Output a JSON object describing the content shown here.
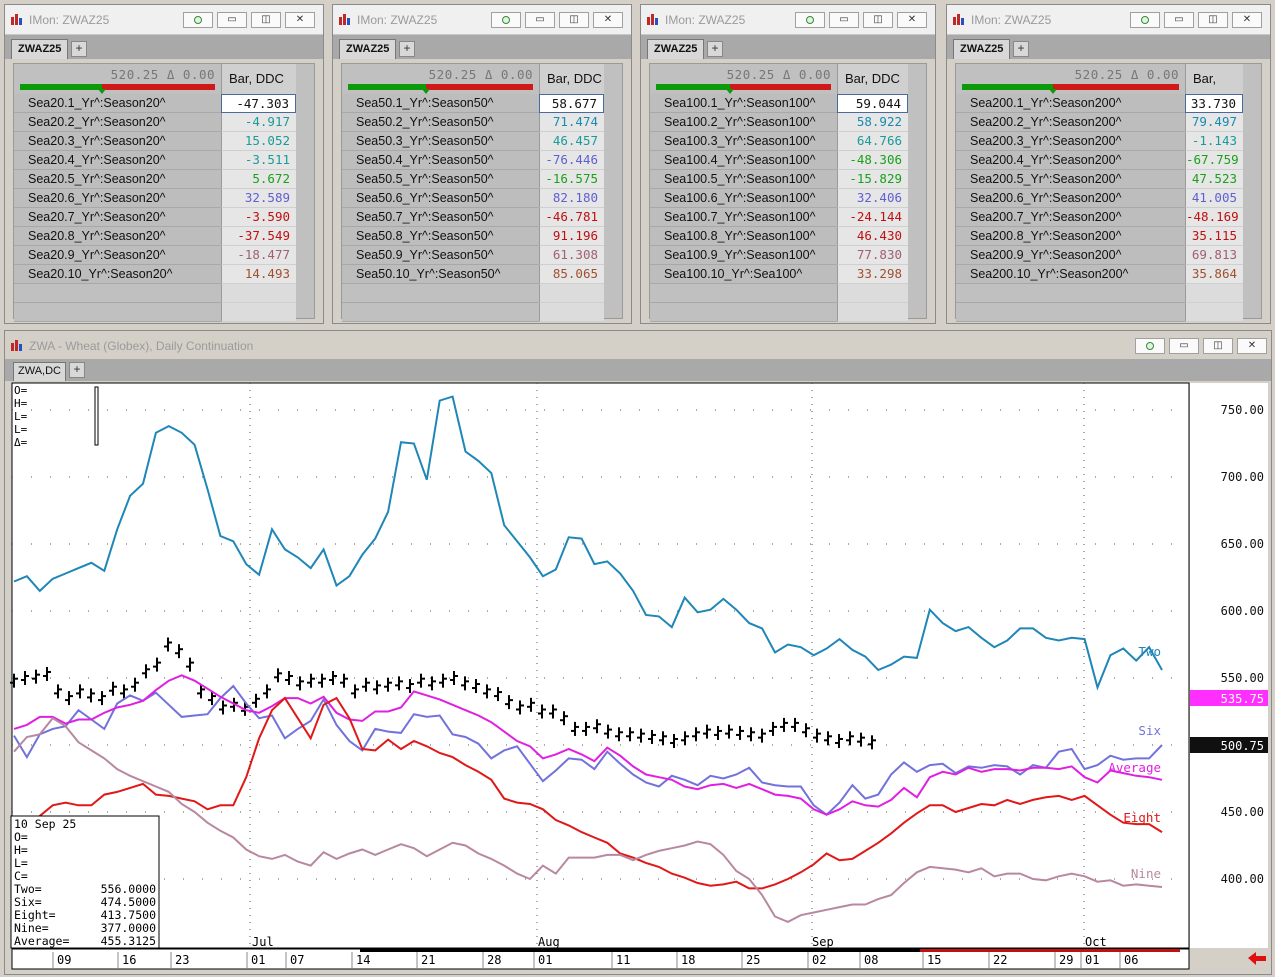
{
  "imon_windows": [
    {
      "title": "IMon: ZWAZ25",
      "tab": "ZWAZ25",
      "price_header": "520.25 Δ 0.00",
      "column_header": "Bar, DDC",
      "rows": [
        {
          "label": "Sea20.1_Yr^:Season20^",
          "value": "-47.303",
          "color": "#111111"
        },
        {
          "label": "Sea20.2_Yr^:Season20^",
          "value": "-4.917",
          "color": "#1a9a9a"
        },
        {
          "label": "Sea20.3_Yr^:Season20^",
          "value": "15.052",
          "color": "#1a9a9a"
        },
        {
          "label": "Sea20.4_Yr^:Season20^",
          "value": "-3.511",
          "color": "#1a9a9a"
        },
        {
          "label": "Sea20.5_Yr^:Season20^",
          "value": "5.672",
          "color": "#1aa01a"
        },
        {
          "label": "Sea20.6_Yr^:Season20^",
          "value": "32.589",
          "color": "#6060d0"
        },
        {
          "label": "Sea20.7_Yr^:Season20^",
          "value": "-3.590",
          "color": "#c01010"
        },
        {
          "label": "Sea20.8_Yr^:Season20^",
          "value": "-37.549",
          "color": "#c01010"
        },
        {
          "label": "Sea20.9_Yr^:Season20^",
          "value": "-18.477",
          "color": "#a06070"
        },
        {
          "label": "Sea20.10_Yr^:Season20^",
          "value": "14.493",
          "color": "#a05030"
        }
      ]
    },
    {
      "title": "IMon: ZWAZ25",
      "tab": "ZWAZ25",
      "price_header": "520.25 Δ 0.00",
      "column_header": "Bar, DDC",
      "rows": [
        {
          "label": "Sea50.1_Yr^:Season50^",
          "value": "58.677",
          "color": "#111111"
        },
        {
          "label": "Sea50.2_Yr^:Season50^",
          "value": "71.474",
          "color": "#1a8ab0"
        },
        {
          "label": "Sea50.3_Yr^:Season50^",
          "value": "46.457",
          "color": "#1a9a9a"
        },
        {
          "label": "Sea50.4_Yr^:Season50^",
          "value": "-76.446",
          "color": "#6060d0"
        },
        {
          "label": "Sea50.5_Yr^:Season50^",
          "value": "-16.575",
          "color": "#1aa01a"
        },
        {
          "label": "Sea50.6_Yr^:Season50^",
          "value": "82.180",
          "color": "#6060d0"
        },
        {
          "label": "Sea50.7_Yr^:Season50^",
          "value": "-46.781",
          "color": "#c01010"
        },
        {
          "label": "Sea50.8_Yr^:Season50^",
          "value": "91.196",
          "color": "#c01010"
        },
        {
          "label": "Sea50.9_Yr^:Season50^",
          "value": "61.308",
          "color": "#a06070"
        },
        {
          "label": "Sea50.10_Yr^:Season50^",
          "value": "85.065",
          "color": "#a05030"
        }
      ]
    },
    {
      "title": "IMon: ZWAZ25",
      "tab": "ZWAZ25",
      "price_header": "520.25 Δ 0.00",
      "column_header": "Bar, DDC",
      "rows": [
        {
          "label": "Sea100.1_Yr^:Season100^",
          "value": "59.044",
          "color": "#111111"
        },
        {
          "label": "Sea100.2_Yr^:Season100^",
          "value": "58.922",
          "color": "#1a8ab0"
        },
        {
          "label": "Sea100.3_Yr^:Season100^",
          "value": "64.766",
          "color": "#1a9a9a"
        },
        {
          "label": "Sea100.4_Yr^:Season100^",
          "value": "-48.306",
          "color": "#1aa01a"
        },
        {
          "label": "Sea100.5_Yr^:Season100^",
          "value": "-15.829",
          "color": "#1aa01a"
        },
        {
          "label": "Sea100.6_Yr^:Season100^",
          "value": "32.406",
          "color": "#6060d0"
        },
        {
          "label": "Sea100.7_Yr^:Season100^",
          "value": "-24.144",
          "color": "#c01010"
        },
        {
          "label": "Sea100.8_Yr^:Season100^",
          "value": "46.430",
          "color": "#c01010"
        },
        {
          "label": "Sea100.9_Yr^:Season100^",
          "value": "77.830",
          "color": "#a06070"
        },
        {
          "label": "Sea100.10_Yr^:Sea100^",
          "value": "33.298",
          "color": "#a05030"
        }
      ]
    },
    {
      "title": "IMon: ZWAZ25",
      "tab": "ZWAZ25",
      "price_header": "520.25 Δ 0.00",
      "column_header": "Bar, DDC",
      "rows": [
        {
          "label": "Sea200.1_Yr^:Season200^",
          "value": "33.730",
          "color": "#111111"
        },
        {
          "label": "Sea200.2_Yr^:Season200^",
          "value": "79.497",
          "color": "#1a8ab0"
        },
        {
          "label": "Sea200.3_Yr^:Season200^",
          "value": "-1.143",
          "color": "#1a9a9a"
        },
        {
          "label": "Sea200.4_Yr^:Season200^",
          "value": "-67.759",
          "color": "#1aa01a"
        },
        {
          "label": "Sea200.5_Yr^:Season200^",
          "value": "47.523",
          "color": "#1aa01a"
        },
        {
          "label": "Sea200.6_Yr^:Season200^",
          "value": "41.005",
          "color": "#6060d0"
        },
        {
          "label": "Sea200.7_Yr^:Season200^",
          "value": "-48.169",
          "color": "#c01010"
        },
        {
          "label": "Sea200.8_Yr^:Season200^",
          "value": "35.115",
          "color": "#c01010"
        },
        {
          "label": "Sea200.9_Yr^:Season200^",
          "value": "69.813",
          "color": "#a06070"
        },
        {
          "label": "Sea200.10_Yr^:Season200^",
          "value": "35.864",
          "color": "#a05030"
        }
      ]
    }
  ],
  "chart_window": {
    "title": "ZWA - Wheat (Globex), Daily Continuation",
    "tab": "ZWA,DC",
    "ohlc_header": [
      "O=",
      "H=",
      "L=",
      "L=",
      "Δ="
    ],
    "data_box": [
      {
        "label": "10 Sep 25",
        "value": ""
      },
      {
        "label": "O=",
        "value": ""
      },
      {
        "label": "H=",
        "value": ""
      },
      {
        "label": "L=",
        "value": ""
      },
      {
        "label": "C=",
        "value": ""
      },
      {
        "label": "Two=",
        "value": "556.0000"
      },
      {
        "label": "Six=",
        "value": "474.5000"
      },
      {
        "label": "Eight=",
        "value": "413.7500"
      },
      {
        "label": "Nine=",
        "value": "377.0000"
      },
      {
        "label": "Average=",
        "value": "455.3125"
      }
    ],
    "price_badges": [
      {
        "value": "535.75",
        "bg": "#ff30ff",
        "fg": "#ffffff"
      },
      {
        "value": "500.75",
        "bg": "#101010",
        "fg": "#ffffff"
      }
    ]
  },
  "chart_data": {
    "type": "line",
    "ylim": [
      355,
      760
    ],
    "yticks": [
      "750.00",
      "700.00",
      "650.00",
      "600.00",
      "550.00",
      "500.00",
      "450.00",
      "400.00"
    ],
    "month_labels": [
      "Jul",
      "Aug",
      "Sep",
      "Oct"
    ],
    "day_labels": [
      "09",
      "16",
      "23",
      "01",
      "07",
      "14",
      "21",
      "28",
      "01",
      "11",
      "18",
      "25",
      "02",
      "08",
      "15",
      "22",
      "29",
      "01",
      "06"
    ],
    "series": [
      {
        "name": "Two",
        "color": "#1f86b8",
        "values": [
          622,
          626,
          615,
          624,
          628,
          632,
          636,
          630,
          661,
          686,
          695,
          733,
          738,
          733,
          724,
          691,
          656,
          652,
          635,
          627,
          661,
          646,
          640,
          632,
          646,
          619,
          626,
          642,
          654,
          674,
          726,
          725,
          698,
          757,
          760,
          719,
          712,
          703,
          664,
          652,
          640,
          626,
          631,
          655,
          654,
          635,
          637,
          628,
          615,
          597,
          596,
          588,
          610,
          599,
          601,
          609,
          601,
          591,
          587,
          569,
          575,
          573,
          567,
          572,
          579,
          571,
          566,
          556,
          560,
          566,
          565,
          601,
          591,
          585,
          588,
          580,
          573,
          578,
          587,
          587,
          580,
          578,
          580,
          579,
          543,
          567,
          572,
          563,
          573,
          556
        ]
      },
      {
        "name": "Six",
        "color": "#7272dc",
        "values": [
          507,
          491,
          508,
          512,
          514,
          526,
          519,
          512,
          531,
          537,
          533,
          539,
          530,
          521,
          522,
          523,
          535,
          544,
          531,
          520,
          522,
          505,
          512,
          518,
          534,
          515,
          503,
          496,
          512,
          510,
          509,
          523,
          521,
          522,
          508,
          506,
          501,
          490,
          496,
          499,
          486,
          473,
          481,
          490,
          489,
          482,
          495,
          486,
          478,
          472,
          469,
          477,
          474,
          470,
          477,
          475,
          478,
          483,
          472,
          470,
          469,
          469,
          455,
          448,
          457,
          470,
          460,
          463,
          478,
          487,
          480,
          485,
          486,
          479,
          484,
          483,
          485,
          484,
          478,
          485,
          483,
          495,
          497,
          482,
          485,
          492,
          489,
          490,
          490,
          500
        ]
      },
      {
        "name": "Average",
        "color": "#e020e0",
        "values": [
          512,
          515,
          521,
          521,
          516,
          519,
          519,
          524,
          528,
          530,
          533,
          541,
          548,
          552,
          548,
          542,
          536,
          531,
          526,
          524,
          529,
          535,
          535,
          531,
          536,
          524,
          519,
          518,
          525,
          525,
          528,
          540,
          537,
          534,
          530,
          526,
          522,
          517,
          510,
          503,
          499,
          490,
          493,
          497,
          493,
          488,
          498,
          492,
          484,
          478,
          476,
          474,
          469,
          467,
          470,
          471,
          468,
          471,
          467,
          463,
          462,
          460,
          452,
          448,
          452,
          458,
          455,
          454,
          459,
          468,
          461,
          476,
          480,
          478,
          483,
          480,
          482,
          482,
          481,
          483,
          483,
          482,
          484,
          476,
          472,
          481,
          479,
          477,
          476,
          474
        ]
      },
      {
        "name": "Eight",
        "color": "#e01818",
        "values": [
          428,
          434,
          447,
          455,
          457,
          455,
          455,
          463,
          465,
          468,
          471,
          463,
          462,
          460,
          458,
          452,
          455,
          455,
          476,
          505,
          526,
          535,
          520,
          505,
          530,
          535,
          520,
          497,
          496,
          504,
          497,
          503,
          499,
          494,
          491,
          485,
          480,
          474,
          460,
          457,
          456,
          452,
          444,
          440,
          435,
          431,
          427,
          419,
          416,
          412,
          409,
          404,
          401,
          397,
          395,
          396,
          398,
          393,
          393,
          396,
          400,
          405,
          411,
          419,
          414,
          415,
          421,
          427,
          434,
          442,
          449,
          455,
          455,
          450,
          453,
          456,
          455,
          459,
          456,
          459,
          461,
          462,
          459,
          462,
          455,
          448,
          442,
          441,
          441,
          435
        ]
      },
      {
        "name": "Nine",
        "color": "#b888a0",
        "values": [
          495,
          506,
          508,
          520,
          514,
          502,
          496,
          490,
          482,
          477,
          473,
          469,
          465,
          456,
          450,
          442,
          436,
          431,
          422,
          417,
          415,
          418,
          413,
          410,
          420,
          415,
          419,
          422,
          418,
          422,
          426,
          423,
          417,
          422,
          427,
          425,
          419,
          415,
          410,
          404,
          400,
          410,
          404,
          416,
          416,
          416,
          418,
          418,
          414,
          418,
          421,
          423,
          425,
          428,
          426,
          418,
          406,
          400,
          388,
          372,
          368,
          373,
          375,
          377,
          379,
          381,
          381,
          385,
          388,
          397,
          405,
          409,
          408,
          407,
          405,
          408,
          402,
          404,
          404,
          400,
          399,
          402,
          404,
          402,
          398,
          399,
          395,
          396,
          395,
          394
        ]
      }
    ],
    "bar_data_note": "",
    "bars": [
      548,
      550,
      551,
      553,
      540,
      535,
      540,
      537,
      535,
      542,
      540,
      545,
      555,
      560,
      575,
      570,
      560,
      540,
      535,
      528,
      530,
      527,
      533,
      540,
      552,
      550,
      546,
      548,
      548,
      550,
      548,
      540,
      545,
      543,
      545,
      546,
      544,
      548,
      546,
      548,
      550,
      546,
      544,
      540,
      538,
      532,
      528,
      530,
      525,
      525,
      520,
      512,
      512,
      514,
      510,
      508,
      508,
      507,
      506,
      505,
      503,
      505,
      508,
      510,
      509,
      510,
      509,
      508,
      507,
      512,
      515,
      515,
      511,
      507,
      505,
      503,
      505,
      504,
      502
    ]
  }
}
